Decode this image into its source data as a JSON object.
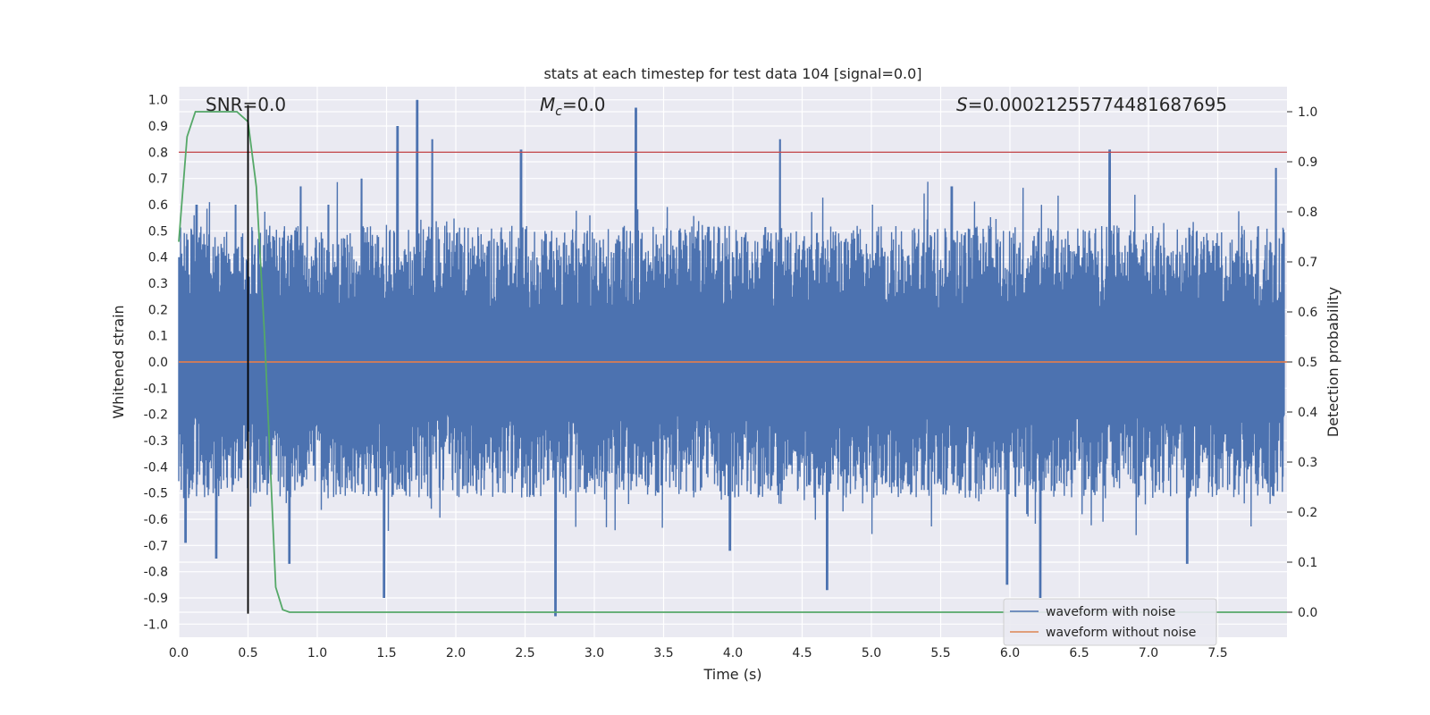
{
  "chart_data": {
    "type": "line",
    "title": "stats at each timestep for test data 104 [signal=0.0]",
    "xlabel": "Time (s)",
    "ylabel": "Whitened strain",
    "ylabel_right": "Detection probability",
    "xlim": [
      0.0,
      8.0
    ],
    "ylim": [
      -1.05,
      1.05
    ],
    "ylim_right": [
      -0.05,
      1.05
    ],
    "xticks": [
      "0.0",
      "0.5",
      "1.0",
      "1.5",
      "2.0",
      "2.5",
      "3.0",
      "3.5",
      "4.0",
      "4.5",
      "5.0",
      "5.5",
      "6.0",
      "6.5",
      "7.0",
      "7.5"
    ],
    "yticks": [
      "1.0",
      "0.9",
      "0.8",
      "0.7",
      "0.6",
      "0.5",
      "0.4",
      "0.3",
      "0.2",
      "0.1",
      "0.0",
      "-0.1",
      "-0.2",
      "-0.3",
      "-0.4",
      "-0.5",
      "-0.6",
      "-0.7",
      "-0.8",
      "-0.9",
      "-1.0"
    ],
    "yticks_right": [
      "1.0",
      "0.9",
      "0.8",
      "0.7",
      "0.6",
      "0.5",
      "0.4",
      "0.3",
      "0.2",
      "0.1",
      "0.0"
    ],
    "grid": true,
    "legend_position": "lower-right",
    "annotations": {
      "snr": "SNR=0.0",
      "mc_symbol": "M",
      "mc_sub": "c",
      "mc_value": "=0.0",
      "s_symbol": "S",
      "s_value": "=0.00021255774481687695"
    },
    "series": [
      {
        "name": "waveform with noise",
        "color": "#4c72b0",
        "description_values": "dense noise trace between roughly -0.95 and 1.0",
        "peaks": [
          [
            0.0,
            0.4
          ],
          [
            0.05,
            -0.69
          ],
          [
            0.13,
            0.6
          ],
          [
            0.27,
            -0.75
          ],
          [
            0.41,
            0.6
          ],
          [
            0.62,
            -0.45
          ],
          [
            0.8,
            -0.77
          ],
          [
            0.88,
            0.67
          ],
          [
            1.08,
            0.6
          ],
          [
            1.32,
            0.7
          ],
          [
            1.48,
            -0.9
          ],
          [
            1.58,
            0.9
          ],
          [
            1.72,
            1.0
          ],
          [
            1.83,
            0.85
          ],
          [
            2.47,
            0.81
          ],
          [
            2.72,
            -0.97
          ],
          [
            3.3,
            0.97
          ],
          [
            3.98,
            -0.72
          ],
          [
            4.34,
            0.85
          ],
          [
            4.68,
            -0.87
          ],
          [
            5.58,
            0.67
          ],
          [
            5.98,
            -0.85
          ],
          [
            6.22,
            -0.9
          ],
          [
            6.72,
            0.81
          ],
          [
            7.28,
            -0.77
          ],
          [
            7.92,
            0.74
          ]
        ]
      },
      {
        "name": "waveform without noise",
        "color": "#dd8452",
        "values_constant": 0.0
      },
      {
        "name": "",
        "color": "#55a868",
        "axis": "right",
        "x": [
          0.0,
          0.06,
          0.12,
          0.2,
          0.3,
          0.42,
          0.5,
          0.56,
          0.62,
          0.7,
          0.75,
          0.8,
          1.0,
          2.0,
          4.0,
          6.0,
          8.0
        ],
        "y": [
          0.74,
          0.95,
          1.0,
          1.0,
          1.0,
          1.0,
          0.98,
          0.85,
          0.55,
          0.05,
          0.005,
          0.0,
          0.0,
          0.0,
          0.0,
          0.0,
          0.0
        ]
      }
    ],
    "hlines": [
      {
        "y": 0.8,
        "color": "#c44e52"
      },
      {
        "y": 0.0,
        "color": "#c44e52"
      }
    ],
    "vline": {
      "x": 0.5,
      "y0": -0.96,
      "y1": 0.98,
      "color": "#000000"
    }
  }
}
